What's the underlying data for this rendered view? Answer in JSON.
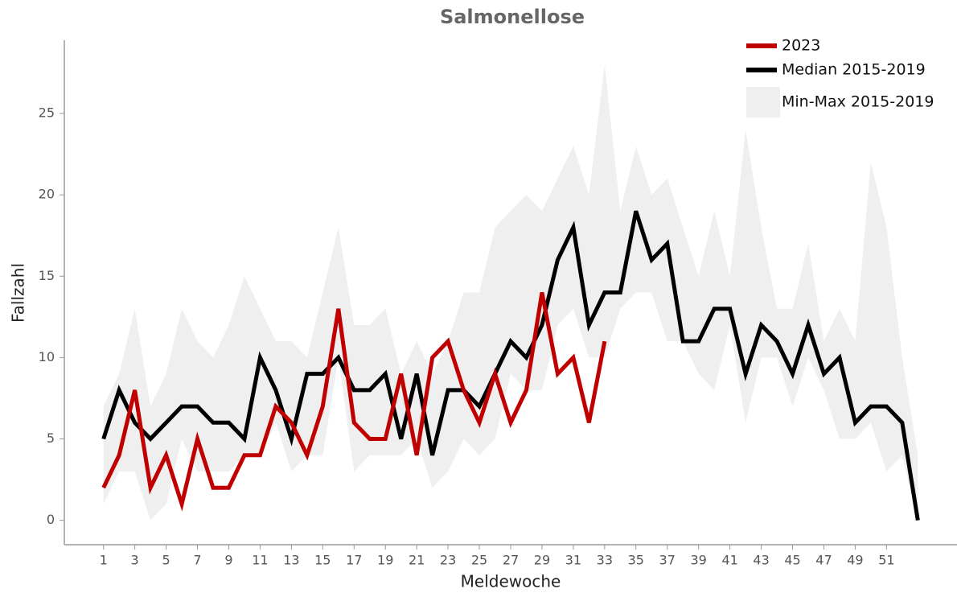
{
  "chart_data": {
    "type": "line",
    "title": "Salmonellose",
    "xlabel": "Meldewoche",
    "ylabel": "Fallzahl",
    "x": [
      1,
      2,
      3,
      4,
      5,
      6,
      7,
      8,
      9,
      10,
      11,
      12,
      13,
      14,
      15,
      16,
      17,
      18,
      19,
      20,
      21,
      22,
      23,
      24,
      25,
      26,
      27,
      28,
      29,
      30,
      31,
      32,
      33,
      34,
      35,
      36,
      37,
      38,
      39,
      40,
      41,
      42,
      43,
      44,
      45,
      46,
      47,
      48,
      49,
      50,
      51,
      52,
      53
    ],
    "xlim": [
      -1.5,
      55.5
    ],
    "xticks": [
      1,
      3,
      5,
      7,
      9,
      11,
      13,
      15,
      17,
      19,
      21,
      23,
      25,
      27,
      29,
      31,
      33,
      35,
      37,
      39,
      41,
      43,
      45,
      47,
      49,
      51
    ],
    "ylim": [
      -1.5,
      29.5
    ],
    "yticks": [
      0,
      5,
      10,
      15,
      20,
      25
    ],
    "legend": "top-right",
    "band": {
      "name": "Min-Max 2015-2019",
      "color": "#efefef",
      "min": [
        1,
        3,
        3,
        0,
        1,
        5,
        3,
        3,
        3,
        4,
        4,
        6,
        3,
        4,
        4,
        10,
        3,
        4,
        4,
        4,
        5,
        2,
        3,
        5,
        4,
        5,
        9,
        8,
        8,
        12,
        13,
        10,
        10,
        13,
        14,
        14,
        11,
        11,
        9,
        8,
        12,
        6,
        10,
        10,
        7,
        10,
        8,
        5,
        5,
        6,
        3,
        4,
        0
      ],
      "max": [
        7,
        9,
        13,
        7,
        9,
        13,
        11,
        10,
        12,
        15,
        13,
        11,
        11,
        10,
        14,
        18,
        12,
        12,
        13,
        9,
        11,
        9,
        11,
        14,
        14,
        18,
        19,
        20,
        19,
        21,
        23,
        20,
        28,
        19,
        23,
        20,
        21,
        18,
        15,
        19,
        15,
        24,
        18,
        13,
        13,
        17,
        11,
        13,
        11,
        22,
        18,
        10,
        4
      ]
    },
    "series": [
      {
        "name": "2023",
        "color": "#c00000",
        "values": [
          2,
          4,
          8,
          2,
          4,
          1,
          5,
          2,
          2,
          4,
          4,
          7,
          6,
          4,
          7,
          13,
          6,
          5,
          5,
          9,
          4,
          10,
          11,
          8,
          6,
          9,
          6,
          8,
          14,
          9,
          10,
          6,
          11,
          null,
          null,
          null,
          null,
          null,
          null,
          null,
          null,
          null,
          null,
          null,
          null,
          null,
          null,
          null,
          null,
          null,
          null,
          null,
          null
        ]
      },
      {
        "name": "Median 2015-2019",
        "color": "#000000",
        "values": [
          5,
          8,
          6,
          5,
          6,
          7,
          7,
          6,
          6,
          5,
          10,
          8,
          5,
          9,
          9,
          10,
          8,
          8,
          9,
          5,
          9,
          4,
          8,
          8,
          7,
          9,
          11,
          10,
          12,
          16,
          18,
          12,
          14,
          14,
          19,
          16,
          17,
          11,
          11,
          13,
          13,
          9,
          12,
          11,
          9,
          12,
          9,
          10,
          6,
          7,
          7,
          6,
          0
        ]
      }
    ]
  }
}
